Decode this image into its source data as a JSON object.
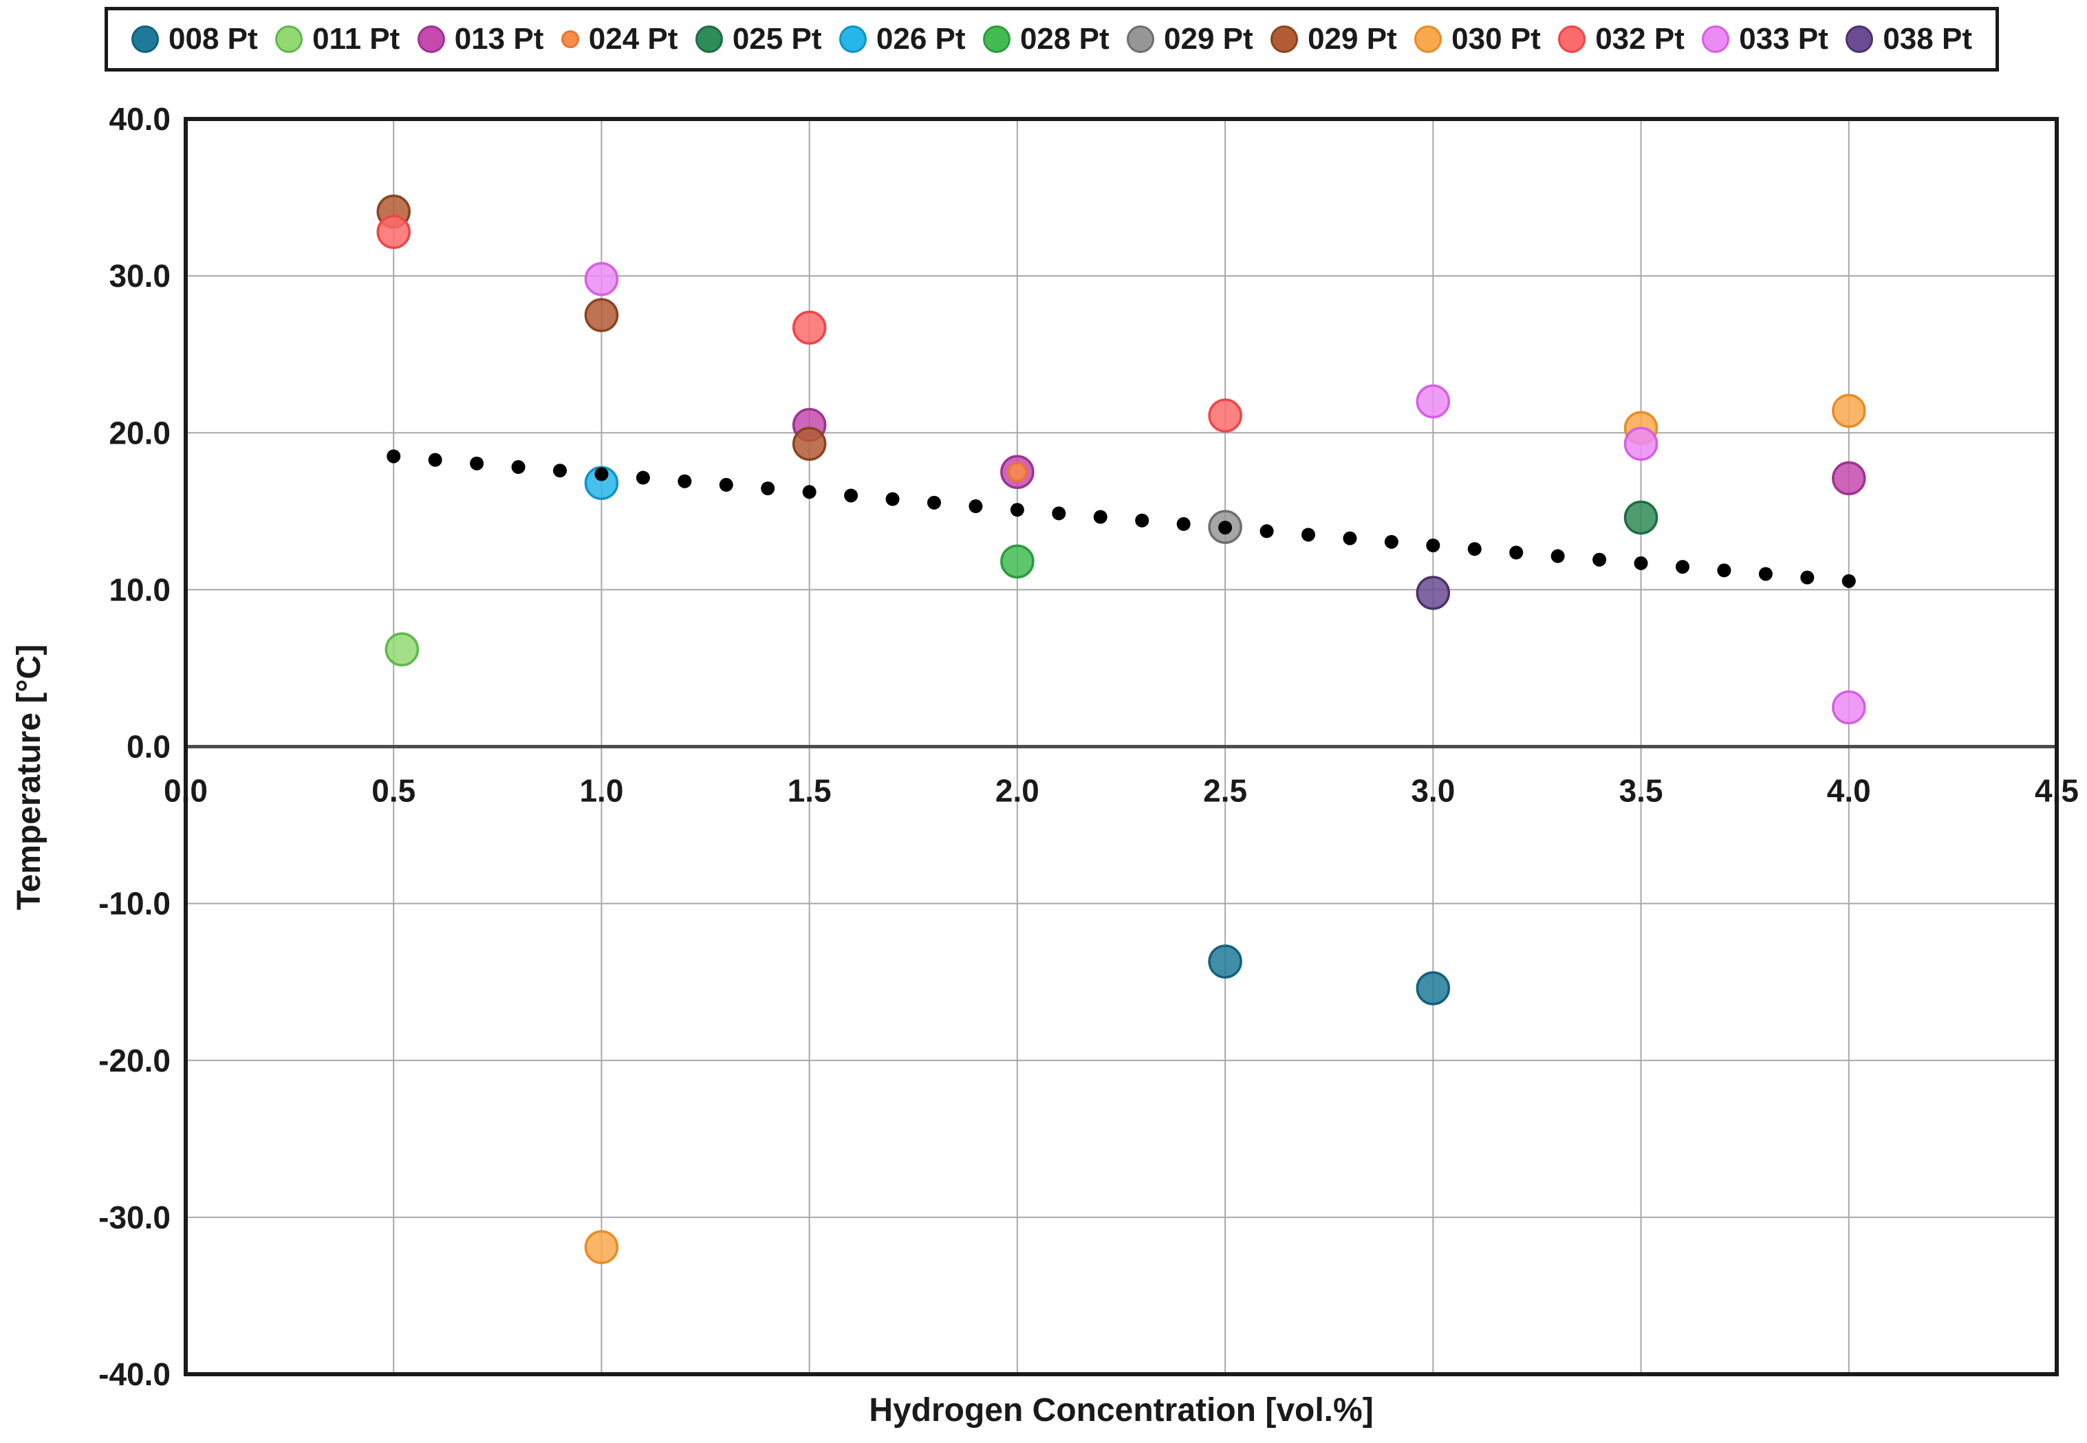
{
  "chart_data": {
    "type": "scatter",
    "title": "",
    "xlabel": "Hydrogen Concentration [vol.%]",
    "ylabel": "Temperature [°C]",
    "xlim": [
      0,
      4.5
    ],
    "ylim": [
      -40,
      40
    ],
    "grid": true,
    "legend_position": "top",
    "grid_color": "#a8a8a8",
    "axis_color": "#1a1a1a",
    "zero_line_color": "#4d4d4d",
    "trend_color": "#000000",
    "x_ticks": [
      {
        "v": 0.0,
        "label": "0.0"
      },
      {
        "v": 0.5,
        "label": "0.5"
      },
      {
        "v": 1.0,
        "label": "1.0"
      },
      {
        "v": 1.5,
        "label": "1.5"
      },
      {
        "v": 2.0,
        "label": "2.0"
      },
      {
        "v": 2.5,
        "label": "2.5"
      },
      {
        "v": 3.0,
        "label": "3.0"
      },
      {
        "v": 3.5,
        "label": "3.5"
      },
      {
        "v": 4.0,
        "label": "4.0"
      },
      {
        "v": 4.5,
        "label": "4.5"
      }
    ],
    "y_ticks": [
      {
        "v": 40,
        "label": "40.0"
      },
      {
        "v": 30,
        "label": "30.0"
      },
      {
        "v": 20,
        "label": "20.0"
      },
      {
        "v": 10,
        "label": "10.0"
      },
      {
        "v": 0,
        "label": "0.0"
      },
      {
        "v": -10,
        "label": "-10.0"
      },
      {
        "v": -20,
        "label": "-20.0"
      },
      {
        "v": -30,
        "label": "-30.0"
      },
      {
        "v": -40,
        "label": "-40.0"
      }
    ],
    "series": [
      {
        "name": "008 Pt",
        "fill": "#1f7a99",
        "stroke": "#14607e",
        "marker_radius": 23,
        "points": [
          [
            2.5,
            -13.7
          ],
          [
            3.0,
            -15.4
          ]
        ]
      },
      {
        "name": "011 Pt",
        "fill": "#92d973",
        "stroke": "#5fb84a",
        "marker_radius": 23,
        "points": [
          [
            0.52,
            6.2
          ]
        ]
      },
      {
        "name": "013 Pt",
        "fill": "#c44aae",
        "stroke": "#9e3390",
        "marker_radius": 23,
        "points": [
          [
            1.5,
            20.5
          ],
          [
            2.0,
            17.5
          ],
          [
            4.0,
            17.1
          ]
        ]
      },
      {
        "name": "024 Pt",
        "fill": "#f78d4a",
        "stroke": "#ed7430",
        "marker_radius": 13,
        "points": [
          [
            2.0,
            17.5
          ]
        ]
      },
      {
        "name": "025 Pt",
        "fill": "#2f8b57",
        "stroke": "#206b41",
        "marker_radius": 23,
        "points": [
          [
            3.5,
            14.6
          ]
        ]
      },
      {
        "name": "026 Pt",
        "fill": "#27b5ea",
        "stroke": "#0e93c6",
        "marker_radius": 23,
        "points": [
          [
            1.0,
            16.8
          ]
        ]
      },
      {
        "name": "028 Pt",
        "fill": "#43bb52",
        "stroke": "#2a9c3c",
        "marker_radius": 23,
        "points": [
          [
            2.0,
            11.8
          ]
        ]
      },
      {
        "name": "029 Pt",
        "fill": "#969696",
        "stroke": "#6e6e6e",
        "marker_radius": 23,
        "points": [
          [
            2.5,
            14.0
          ]
        ]
      },
      {
        "name": "029 Pt",
        "fill": "#b35c34",
        "stroke": "#8a4321",
        "marker_radius": 23,
        "points": [
          [
            0.5,
            34.1
          ],
          [
            1.0,
            27.5
          ],
          [
            1.5,
            19.3
          ]
        ]
      },
      {
        "name": "030 Pt",
        "fill": "#f9a84e",
        "stroke": "#e88d26",
        "marker_radius": 23,
        "points": [
          [
            1.0,
            -31.9
          ],
          [
            3.5,
            20.3
          ],
          [
            4.0,
            21.4
          ]
        ]
      },
      {
        "name": "032 Pt",
        "fill": "#fb6b6b",
        "stroke": "#ee4545",
        "marker_radius": 23,
        "points": [
          [
            0.5,
            32.8
          ],
          [
            1.5,
            26.7
          ],
          [
            2.5,
            21.1
          ]
        ]
      },
      {
        "name": "033 Pt",
        "fill": "#ec8bf5",
        "stroke": "#d55fe3",
        "marker_radius": 23,
        "points": [
          [
            1.0,
            29.8
          ],
          [
            3.0,
            22.0
          ],
          [
            3.5,
            19.3
          ],
          [
            4.0,
            2.5
          ]
        ]
      },
      {
        "name": "038 Pt",
        "fill": "#6a4c93",
        "stroke": "#4b3268",
        "marker_radius": 23,
        "points": [
          [
            3.0,
            9.8
          ]
        ]
      }
    ],
    "trend_line": {
      "style": "dotted",
      "color": "#000000",
      "x_start": 0.5,
      "y_start": 18.5,
      "x_end": 4.0,
      "y_end": 10.55,
      "n_dots": 36,
      "dot_radius": 10
    }
  }
}
